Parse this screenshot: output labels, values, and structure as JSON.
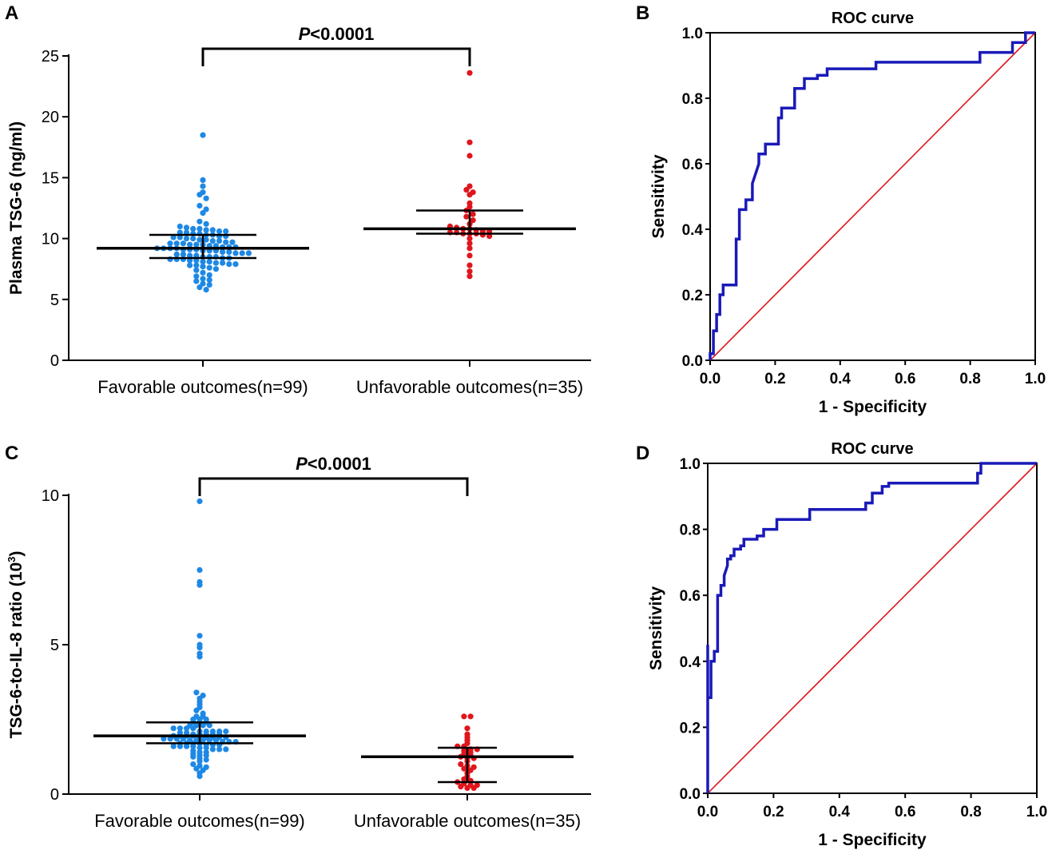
{
  "colors": {
    "favorable": "#1E88E5",
    "unfavorable": "#E0161C",
    "roc": "#1A1AB8",
    "diagonal": "#E0161C",
    "axis": "#000000"
  },
  "chart_data": [
    {
      "panel": "A",
      "type": "scatter",
      "ylabel": "Plasma TSG-6 (ng/ml)",
      "ylim": [
        0,
        25
      ],
      "yticks": [
        "0",
        "5",
        "10",
        "15",
        "20",
        "25"
      ],
      "categories": [
        "Favorable outcomes(n=99)",
        "Unfavorable outcomes(n=35)"
      ],
      "significance": {
        "prefix": "P",
        "suffix": "<0.0001"
      },
      "series": [
        {
          "name": "Favorable outcomes(n=99)",
          "n": 99,
          "median": 9.2,
          "q1": 8.4,
          "q3": 10.3,
          "values": [
            18.5,
            14.8,
            14.3,
            13.8,
            13.6,
            13.3,
            12.7,
            12.4,
            12.1,
            11.4,
            11.2,
            11.0,
            10.9,
            10.8,
            10.8,
            10.7,
            10.7,
            10.6,
            10.6,
            10.5,
            10.5,
            10.4,
            10.4,
            10.3,
            10.3,
            10.2,
            10.2,
            10.1,
            10.1,
            10.0,
            10.0,
            9.9,
            9.9,
            9.8,
            9.8,
            9.7,
            9.7,
            9.6,
            9.6,
            9.6,
            9.5,
            9.5,
            9.5,
            9.4,
            9.4,
            9.3,
            9.3,
            9.3,
            9.2,
            9.2,
            9.2,
            9.2,
            9.1,
            9.1,
            9.1,
            9.0,
            9.0,
            9.0,
            8.9,
            8.9,
            8.8,
            8.8,
            8.8,
            8.7,
            8.7,
            8.6,
            8.6,
            8.5,
            8.5,
            8.5,
            8.4,
            8.4,
            8.3,
            8.3,
            8.3,
            8.2,
            8.2,
            8.1,
            8.1,
            8.0,
            8.0,
            7.9,
            7.9,
            7.8,
            7.8,
            7.7,
            7.6,
            7.5,
            7.4,
            7.2,
            7.0,
            6.9,
            6.7,
            6.6,
            6.5,
            6.3,
            6.2,
            6.0,
            5.8
          ]
        },
        {
          "name": "Unfavorable outcomes(n=35)",
          "n": 35,
          "median": 10.8,
          "q1": 10.4,
          "q3": 12.3,
          "values": [
            23.6,
            17.9,
            16.8,
            14.3,
            14.0,
            13.8,
            13.6,
            12.9,
            12.6,
            12.3,
            12.0,
            11.8,
            11.5,
            11.2,
            11.0,
            10.9,
            10.8,
            10.8,
            10.7,
            10.6,
            10.6,
            10.5,
            10.5,
            10.4,
            10.4,
            10.4,
            10.3,
            10.2,
            10.0,
            9.6,
            9.2,
            8.6,
            7.8,
            7.3,
            6.9
          ]
        }
      ]
    },
    {
      "panel": "B",
      "type": "line",
      "title": "ROC curve",
      "xlabel": "1 - Specificity",
      "ylabel": "Sensitivity",
      "xlim": [
        0,
        1
      ],
      "ylim": [
        0,
        1
      ],
      "xticks": [
        "0.0",
        "0.2",
        "0.4",
        "0.6",
        "0.8",
        "1.0"
      ],
      "yticks": [
        "0.0",
        "0.2",
        "0.4",
        "0.6",
        "0.8",
        "1.0"
      ],
      "series": [
        {
          "name": "ROC",
          "points": [
            [
              0,
              0
            ],
            [
              0,
              0.02
            ],
            [
              0.01,
              0.02
            ],
            [
              0.01,
              0.09
            ],
            [
              0.02,
              0.09
            ],
            [
              0.02,
              0.14
            ],
            [
              0.03,
              0.14
            ],
            [
              0.03,
              0.2
            ],
            [
              0.04,
              0.2
            ],
            [
              0.04,
              0.23
            ],
            [
              0.08,
              0.23
            ],
            [
              0.08,
              0.37
            ],
            [
              0.09,
              0.37
            ],
            [
              0.09,
              0.46
            ],
            [
              0.11,
              0.46
            ],
            [
              0.11,
              0.49
            ],
            [
              0.13,
              0.49
            ],
            [
              0.13,
              0.54
            ],
            [
              0.14,
              0.57
            ],
            [
              0.15,
              0.6
            ],
            [
              0.15,
              0.63
            ],
            [
              0.17,
              0.63
            ],
            [
              0.17,
              0.66
            ],
            [
              0.21,
              0.66
            ],
            [
              0.21,
              0.74
            ],
            [
              0.22,
              0.74
            ],
            [
              0.22,
              0.77
            ],
            [
              0.26,
              0.77
            ],
            [
              0.26,
              0.83
            ],
            [
              0.29,
              0.83
            ],
            [
              0.29,
              0.86
            ],
            [
              0.33,
              0.86
            ],
            [
              0.33,
              0.87
            ],
            [
              0.36,
              0.87
            ],
            [
              0.36,
              0.89
            ],
            [
              0.51,
              0.89
            ],
            [
              0.51,
              0.91
            ],
            [
              0.83,
              0.91
            ],
            [
              0.83,
              0.94
            ],
            [
              0.93,
              0.94
            ],
            [
              0.93,
              0.97
            ],
            [
              0.97,
              0.97
            ],
            [
              0.97,
              1.0
            ],
            [
              1.0,
              1.0
            ]
          ]
        },
        {
          "name": "Reference",
          "points": [
            [
              0,
              0
            ],
            [
              1,
              1
            ]
          ]
        }
      ]
    },
    {
      "panel": "C",
      "type": "scatter",
      "ylabel": "TSG-6-to-IL-8 ratio (10",
      "ylabel_sup": "3",
      "ylabel_end": ")",
      "ylim": [
        0,
        10
      ],
      "yticks": [
        "0",
        "5",
        "10"
      ],
      "categories": [
        "Favorable outcomes(n=99)",
        "Unfavorable outcomes(n=35)"
      ],
      "significance": {
        "prefix": "P",
        "suffix": "<0.0001"
      },
      "series": [
        {
          "name": "Favorable outcomes(n=99)",
          "n": 99,
          "median": 1.95,
          "q1": 1.7,
          "q3": 2.4,
          "values": [
            9.8,
            7.5,
            7.1,
            7.0,
            5.3,
            5.0,
            4.9,
            4.7,
            4.6,
            3.4,
            3.3,
            3.2,
            3.1,
            3.0,
            2.9,
            2.8,
            2.7,
            2.6,
            2.6,
            2.5,
            2.5,
            2.5,
            2.4,
            2.4,
            2.4,
            2.3,
            2.3,
            2.3,
            2.3,
            2.2,
            2.2,
            2.2,
            2.2,
            2.1,
            2.1,
            2.1,
            2.1,
            2.1,
            2.05,
            2.05,
            2.0,
            2.0,
            2.0,
            2.0,
            2.0,
            1.95,
            1.95,
            1.95,
            1.95,
            1.9,
            1.9,
            1.9,
            1.9,
            1.9,
            1.85,
            1.85,
            1.85,
            1.85,
            1.8,
            1.8,
            1.8,
            1.8,
            1.8,
            1.75,
            1.75,
            1.75,
            1.7,
            1.7,
            1.7,
            1.7,
            1.65,
            1.65,
            1.65,
            1.6,
            1.6,
            1.6,
            1.6,
            1.55,
            1.55,
            1.5,
            1.5,
            1.5,
            1.45,
            1.4,
            1.4,
            1.35,
            1.3,
            1.3,
            1.25,
            1.2,
            1.15,
            1.1,
            1.0,
            0.95,
            0.9,
            0.85,
            0.8,
            0.7,
            0.6
          ]
        },
        {
          "name": "Unfavorable outcomes(n=35)",
          "n": 35,
          "median": 1.25,
          "q1": 0.4,
          "q3": 1.55,
          "values": [
            2.6,
            2.6,
            2.2,
            2.0,
            1.9,
            1.8,
            1.7,
            1.6,
            1.6,
            1.5,
            1.5,
            1.45,
            1.4,
            1.35,
            1.3,
            1.25,
            1.2,
            1.2,
            1.1,
            1.0,
            0.95,
            0.9,
            0.85,
            0.8,
            0.7,
            0.6,
            0.5,
            0.45,
            0.4,
            0.35,
            0.3,
            0.3,
            0.25,
            0.2,
            0.2
          ]
        }
      ]
    },
    {
      "panel": "D",
      "type": "line",
      "title": "ROC curve",
      "xlabel": "1 - Specificity",
      "ylabel": "Sensitivity",
      "xlim": [
        0,
        1
      ],
      "ylim": [
        0,
        1
      ],
      "xticks": [
        "0.0",
        "0.2",
        "0.4",
        "0.6",
        "0.8",
        "1.0"
      ],
      "yticks": [
        "0.0",
        "0.2",
        "0.4",
        "0.6",
        "0.8",
        "1.0"
      ],
      "series": [
        {
          "name": "ROC",
          "points": [
            [
              0,
              0
            ],
            [
              0,
              0.45
            ],
            [
              0,
              0.29
            ],
            [
              0.01,
              0.29
            ],
            [
              0.01,
              0.4
            ],
            [
              0.02,
              0.4
            ],
            [
              0.02,
              0.43
            ],
            [
              0.03,
              0.43
            ],
            [
              0.03,
              0.6
            ],
            [
              0.04,
              0.6
            ],
            [
              0.04,
              0.63
            ],
            [
              0.05,
              0.63
            ],
            [
              0.05,
              0.66
            ],
            [
              0.06,
              0.69
            ],
            [
              0.06,
              0.71
            ],
            [
              0.07,
              0.71
            ],
            [
              0.07,
              0.72
            ],
            [
              0.08,
              0.72
            ],
            [
              0.08,
              0.74
            ],
            [
              0.1,
              0.74
            ],
            [
              0.1,
              0.75
            ],
            [
              0.11,
              0.75
            ],
            [
              0.11,
              0.77
            ],
            [
              0.15,
              0.77
            ],
            [
              0.15,
              0.78
            ],
            [
              0.17,
              0.78
            ],
            [
              0.17,
              0.8
            ],
            [
              0.21,
              0.8
            ],
            [
              0.21,
              0.83
            ],
            [
              0.31,
              0.83
            ],
            [
              0.31,
              0.86
            ],
            [
              0.48,
              0.86
            ],
            [
              0.48,
              0.88
            ],
            [
              0.5,
              0.88
            ],
            [
              0.5,
              0.91
            ],
            [
              0.53,
              0.91
            ],
            [
              0.53,
              0.93
            ],
            [
              0.55,
              0.93
            ],
            [
              0.55,
              0.94
            ],
            [
              0.82,
              0.94
            ],
            [
              0.82,
              0.97
            ],
            [
              0.83,
              0.97
            ],
            [
              0.83,
              1.0
            ],
            [
              1.0,
              1.0
            ]
          ]
        },
        {
          "name": "Reference",
          "points": [
            [
              0,
              0
            ],
            [
              1,
              1
            ]
          ]
        }
      ]
    }
  ]
}
